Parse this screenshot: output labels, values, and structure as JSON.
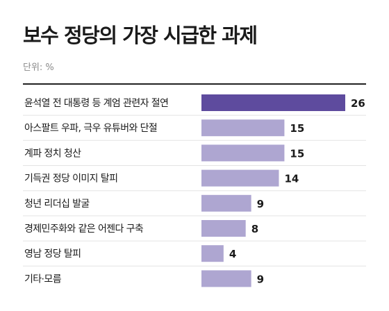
{
  "chart_data": {
    "type": "bar",
    "orientation": "horizontal",
    "title": "보수 정당의 가장 시급한 과제",
    "unit_label": "단위: %",
    "categories": [
      "윤석열 전 대통령 등 계엄 관련자 절연",
      "아스팔트 우파, 극우 유튜버와 단절",
      "계파 정치 청산",
      "기득권 정당 이미지 탈피",
      "청년 리더십 발굴",
      "경제민주화와 같은 어젠다 구축",
      "영남 정당 탈피",
      "기타·모름"
    ],
    "values": [
      26,
      15,
      15,
      14,
      9,
      8,
      4,
      9
    ],
    "highlight_index": 0,
    "xlim": [
      0,
      26
    ],
    "grid": false,
    "legend": "none",
    "colors": {
      "highlight": "#5e4b9e",
      "default": "#aea6d1",
      "divider": "#222222",
      "row_line": "#e3e3e3"
    }
  }
}
